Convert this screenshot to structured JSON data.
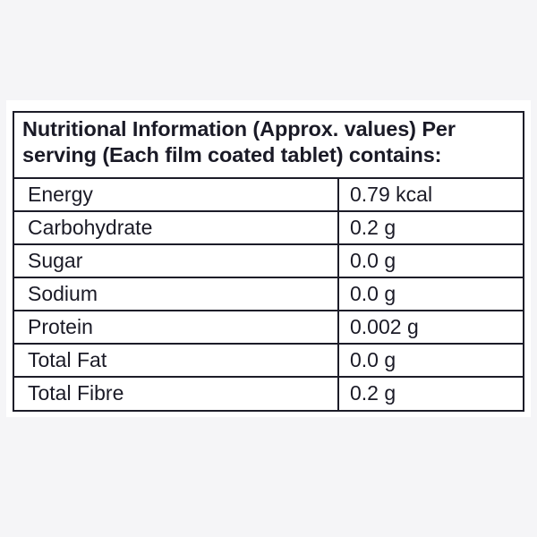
{
  "table": {
    "heading_line_1": "Nutritional Information (Approx. values) Per",
    "heading_line_2": "serving (Each film coated tablet) contains:",
    "rows": [
      {
        "name": "Energy",
        "value": "0.79 kcal"
      },
      {
        "name": "Carbohydrate",
        "value": "0.2 g"
      },
      {
        "name": "Sugar",
        "value": "0.0 g"
      },
      {
        "name": "Sodium",
        "value": "0.0 g"
      },
      {
        "name": "Protein",
        "value": "0.002 g"
      },
      {
        "name": "Total Fat",
        "value": "0.0 g"
      },
      {
        "name": "Total Fibre",
        "value": "0.2 g"
      }
    ]
  },
  "colors": {
    "background": "#f5f5f7",
    "panel": "#ffffff",
    "text": "#1a1a26",
    "border": "#1c1c28"
  }
}
